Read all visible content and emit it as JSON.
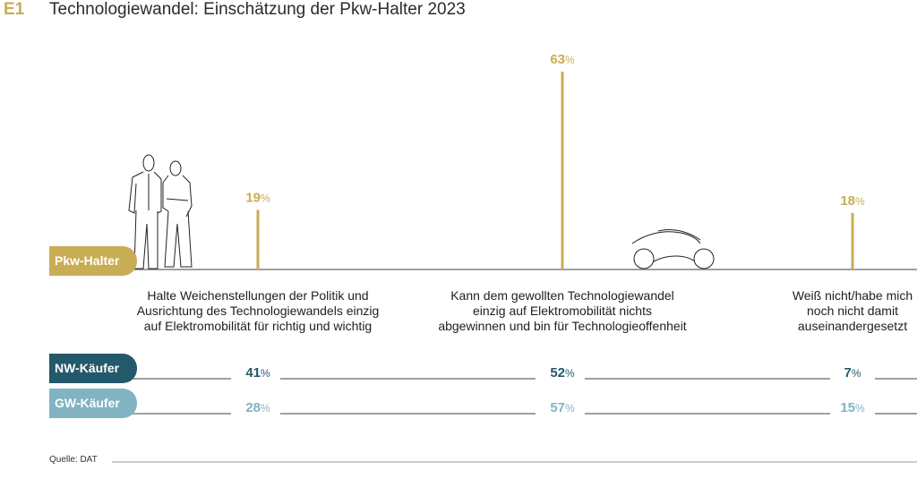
{
  "figure_label": "E1",
  "title": "Technologiewandel: Einschätzung der Pkw-Halter 2023",
  "source": "Quelle: DAT",
  "colors": {
    "pkw_halter": "#c8ad55",
    "nw_kaeufer": "#24586b",
    "gw_kaeufer": "#82b3c3",
    "baseline": "#555555"
  },
  "chart_data": {
    "type": "bar",
    "title": "Technologiewandel: Einschätzung der Pkw-Halter 2023",
    "xlabel": "",
    "ylabel": "",
    "ylim": [
      0,
      63
    ],
    "categories": [
      "Halte Weichenstellungen der Politik und Ausrichtung des Technologiewandels einzig auf Elektromobilität für richtig und wichtig",
      "Kann dem gewollten Technologiewandel einzig auf Elektromobilität nichts abgewinnen und bin für Technologieoffenheit",
      "Weiß nicht/habe mich noch nicht damit auseinandergesetzt"
    ],
    "category_lines": [
      [
        "Halte Weichenstellungen der Politik und",
        "Ausrichtung des Technologiewandels einzig",
        "auf Elektromobilität für richtig und wichtig"
      ],
      [
        "Kann dem gewollten Technologiewandel",
        "einzig auf Elektromobilität nichts",
        "abgewinnen und bin für Technologieoffenheit"
      ],
      [
        "Weiß nicht/habe mich",
        "noch nicht damit",
        "auseinandergesetzt"
      ]
    ],
    "series": [
      {
        "name": "Pkw-Halter",
        "values": [
          19,
          63,
          18
        ],
        "labels": [
          "19",
          "63",
          "18"
        ]
      },
      {
        "name": "NW-Käufer",
        "values": [
          41,
          52,
          7
        ],
        "labels": [
          "41",
          "52",
          "7"
        ]
      },
      {
        "name": "GW-Käufer",
        "values": [
          28,
          57,
          15
        ],
        "labels": [
          "28",
          "57",
          "15"
        ]
      }
    ],
    "unit": "%",
    "legend": "left"
  }
}
